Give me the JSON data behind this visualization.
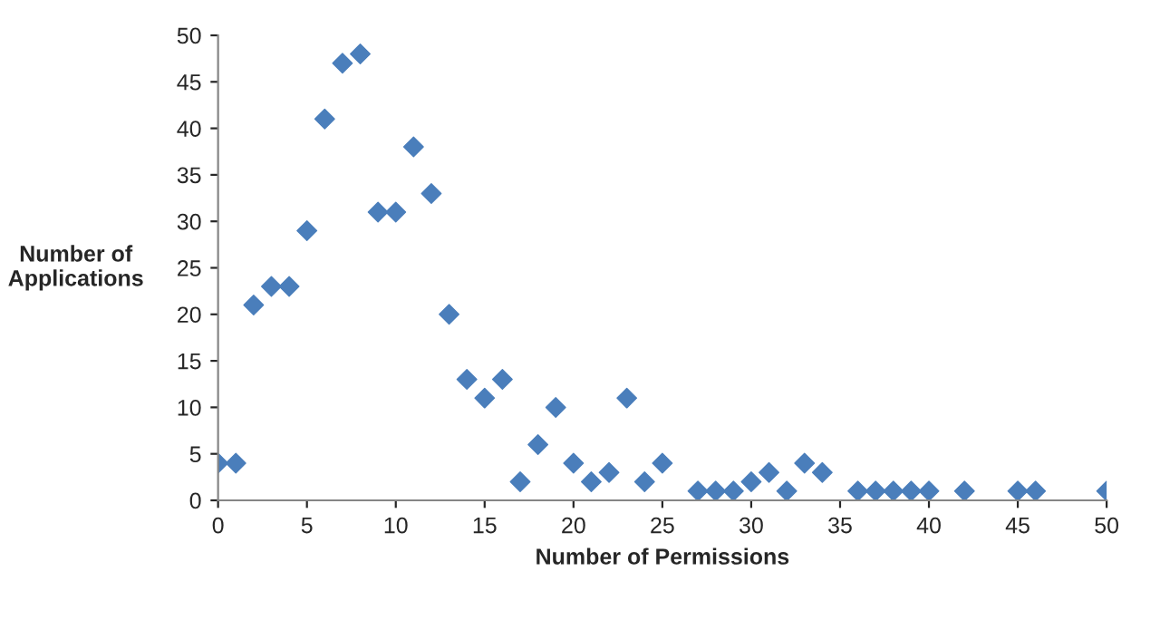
{
  "chart_data": {
    "type": "scatter",
    "xlabel": "Number of Permissions",
    "ylabel": "Number of\nApplications",
    "x": [
      0,
      1,
      2,
      3,
      4,
      5,
      6,
      7,
      8,
      9,
      10,
      11,
      12,
      13,
      14,
      15,
      16,
      17,
      18,
      19,
      20,
      21,
      22,
      23,
      24,
      25,
      27,
      28,
      29,
      30,
      31,
      32,
      33,
      34,
      36,
      37,
      38,
      39,
      40,
      42,
      45,
      46,
      50
    ],
    "series": [
      {
        "color": "#4a7ebb",
        "values": [
          4,
          4,
          21,
          23,
          23,
          29,
          41,
          47,
          48,
          31,
          31,
          38,
          33,
          20,
          13,
          11,
          13,
          2,
          6,
          10,
          4,
          2,
          3,
          11,
          2,
          4,
          1,
          1,
          1,
          2,
          3,
          1,
          4,
          3,
          1,
          1,
          1,
          1,
          1,
          1,
          1,
          1,
          1
        ]
      }
    ],
    "xlim": [
      0,
      50
    ],
    "xticks": [
      0,
      5,
      10,
      15,
      20,
      25,
      30,
      35,
      40,
      45,
      50
    ],
    "ylim": [
      0,
      50
    ],
    "yticks": [
      0,
      5,
      10,
      15,
      20,
      25,
      30,
      35,
      40,
      45,
      50
    ],
    "marker": "diamond",
    "grid": false,
    "legend": false
  }
}
